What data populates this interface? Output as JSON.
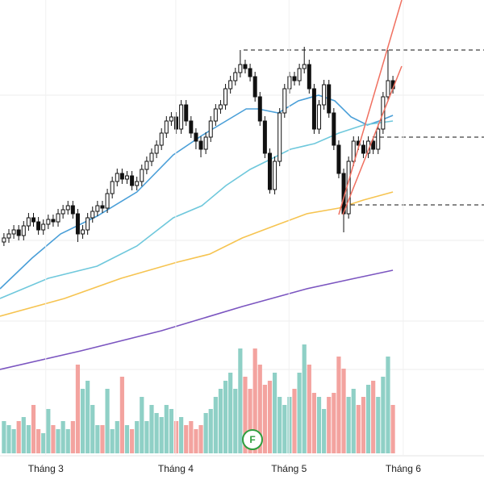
{
  "chart_data": {
    "type": "candlestick",
    "xlim": [
      -0.8,
      97.5
    ],
    "ylim": [
      0,
      600
    ],
    "y2lim": [
      0,
      560
    ],
    "xticks": [
      {
        "value": 8.5,
        "label": "Tháng 3"
      },
      {
        "value": 34.9,
        "label": "Tháng 4"
      },
      {
        "value": 57.9,
        "label": "Tháng 5"
      },
      {
        "value": 81.1,
        "label": "Tháng 6"
      }
    ],
    "candle_color": "#111111",
    "up_color": "#8fd0c6",
    "down_color": "#f3a39f",
    "ohlc": [
      [
        300,
        311,
        295,
        305
      ],
      [
        305,
        316,
        299,
        310
      ],
      [
        310,
        321,
        304,
        315
      ],
      [
        315,
        321,
        302,
        308
      ],
      [
        308,
        326,
        302,
        320
      ],
      [
        320,
        336,
        314,
        330
      ],
      [
        330,
        336,
        319,
        325
      ],
      [
        325,
        331,
        309,
        315
      ],
      [
        315,
        328,
        309,
        322
      ],
      [
        322,
        334,
        316,
        328
      ],
      [
        328,
        334,
        319,
        325
      ],
      [
        325,
        341,
        319,
        335
      ],
      [
        335,
        346,
        329,
        340
      ],
      [
        340,
        351,
        334,
        345
      ],
      [
        345,
        351,
        329,
        335
      ],
      [
        335,
        341,
        300,
        310
      ],
      [
        310,
        321,
        304,
        315
      ],
      [
        315,
        336,
        309,
        330
      ],
      [
        330,
        344,
        324,
        338
      ],
      [
        338,
        351,
        332,
        345
      ],
      [
        345,
        351,
        336,
        342
      ],
      [
        342,
        366,
        336,
        360
      ],
      [
        360,
        381,
        354,
        375
      ],
      [
        375,
        391,
        369,
        385
      ],
      [
        385,
        391,
        372,
        378
      ],
      [
        378,
        388,
        372,
        382
      ],
      [
        382,
        388,
        364,
        370
      ],
      [
        370,
        381,
        364,
        375
      ],
      [
        375,
        396,
        369,
        390
      ],
      [
        390,
        406,
        384,
        400
      ],
      [
        400,
        416,
        394,
        410
      ],
      [
        410,
        426,
        404,
        420
      ],
      [
        420,
        441,
        414,
        435
      ],
      [
        435,
        456,
        429,
        450
      ],
      [
        450,
        461,
        444,
        455
      ],
      [
        455,
        461,
        434,
        440
      ],
      [
        440,
        476,
        434,
        470
      ],
      [
        470,
        476,
        444,
        450
      ],
      [
        450,
        456,
        429,
        435
      ],
      [
        435,
        441,
        415,
        425
      ],
      [
        425,
        431,
        405,
        415
      ],
      [
        415,
        436,
        409,
        430
      ],
      [
        430,
        456,
        424,
        450
      ],
      [
        450,
        471,
        444,
        465
      ],
      [
        465,
        476,
        459,
        470
      ],
      [
        470,
        496,
        464,
        490
      ],
      [
        490,
        506,
        484,
        500
      ],
      [
        500,
        516,
        494,
        510
      ],
      [
        510,
        538,
        504,
        520
      ],
      [
        520,
        526,
        509,
        515
      ],
      [
        515,
        521,
        499,
        505
      ],
      [
        505,
        511,
        474,
        480
      ],
      [
        480,
        486,
        444,
        450
      ],
      [
        450,
        456,
        404,
        410
      ],
      [
        410,
        416,
        360,
        365
      ],
      [
        365,
        406,
        359,
        400
      ],
      [
        400,
        466,
        394,
        460
      ],
      [
        460,
        496,
        454,
        490
      ],
      [
        490,
        511,
        484,
        505
      ],
      [
        505,
        511,
        494,
        500
      ],
      [
        500,
        521,
        494,
        515
      ],
      [
        515,
        542,
        509,
        520
      ],
      [
        520,
        526,
        484,
        490
      ],
      [
        490,
        496,
        434,
        440
      ],
      [
        440,
        476,
        434,
        470
      ],
      [
        470,
        501,
        464,
        495
      ],
      [
        495,
        501,
        454,
        460
      ],
      [
        460,
        466,
        414,
        420
      ],
      [
        420,
        426,
        379,
        385
      ],
      [
        385,
        391,
        312,
        335
      ],
      [
        335,
        406,
        329,
        400
      ],
      [
        400,
        431,
        394,
        425
      ],
      [
        425,
        431,
        414,
        420
      ],
      [
        420,
        426,
        404,
        410
      ],
      [
        410,
        431,
        404,
        425
      ],
      [
        425,
        431,
        409,
        415
      ],
      [
        415,
        446,
        409,
        440
      ],
      [
        440,
        486,
        434,
        480
      ],
      [
        480,
        538,
        474,
        500
      ],
      [
        500,
        506,
        484,
        490
      ]
    ],
    "volume": [
      40,
      35,
      30,
      40,
      45,
      35,
      60,
      30,
      25,
      55,
      35,
      30,
      40,
      30,
      40,
      110,
      80,
      90,
      60,
      35,
      35,
      80,
      30,
      40,
      95,
      35,
      30,
      40,
      70,
      40,
      60,
      50,
      45,
      60,
      55,
      40,
      45,
      35,
      40,
      30,
      35,
      50,
      55,
      70,
      80,
      90,
      100,
      80,
      130,
      95,
      80,
      130,
      110,
      85,
      90,
      100,
      70,
      60,
      70,
      80,
      100,
      135,
      110,
      75,
      70,
      55,
      70,
      75,
      120,
      105,
      70,
      80,
      60,
      70,
      85,
      90,
      70,
      95,
      120,
      60
    ],
    "series": [
      {
        "color": "#4a9fd8",
        "x": [
          -0.8,
          5.7,
          11.5,
          18.9,
          27,
          34.4,
          40.2,
          45.1,
          49.2,
          51.6,
          55.7,
          59.8,
          63.9,
          67.2,
          70.5,
          73.8,
          76.2,
          79
        ],
        "values": [
          242,
          280,
          310,
          332,
          362,
          408,
          432,
          450,
          465,
          465,
          460,
          475,
          482,
          475,
          455,
          445,
          450,
          457
        ]
      },
      {
        "color": "#6fc8dc",
        "x": [
          -0.8,
          9,
          18.9,
          27,
          34.4,
          40.2,
          45.1,
          50,
          53.3,
          58.2,
          63.1,
          68,
          73,
          79
        ],
        "values": [
          230,
          255,
          270,
          295,
          330,
          345,
          370,
          390,
          400,
          415,
          422,
          435,
          445,
          450
        ]
      },
      {
        "color": "#f6c451",
        "x": [
          -0.8,
          12.3,
          23.8,
          35.2,
          41.8,
          48.4,
          54.9,
          61.5,
          68,
          73,
          79
        ],
        "values": [
          208,
          230,
          255,
          275,
          285,
          305,
          320,
          335,
          342,
          352,
          362
        ]
      },
      {
        "color": "#7b55c0",
        "x": [
          -0.8,
          15.6,
          32,
          48.4,
          61.5,
          71.3,
          79
        ],
        "values": [
          142,
          165,
          190,
          220,
          242,
          255,
          265
        ]
      }
    ],
    "marker": "F"
  }
}
